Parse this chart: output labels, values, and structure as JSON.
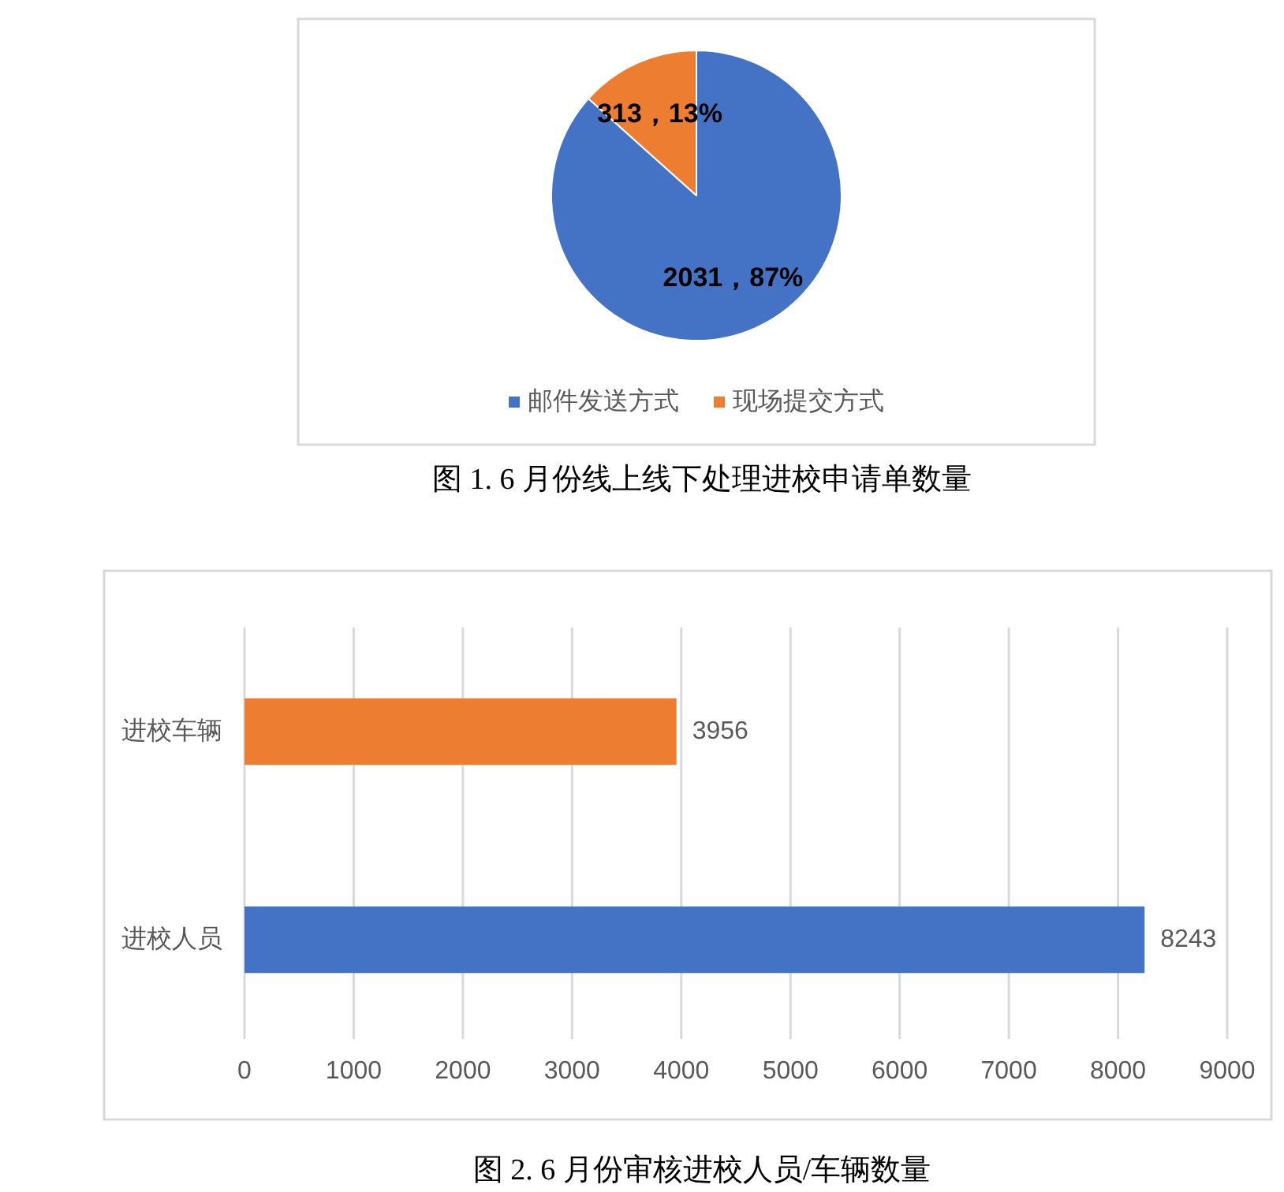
{
  "chart_data": [
    {
      "type": "pie",
      "title": "图 1. 6 月份线上线下处理进校申请单数量",
      "categories": [
        "邮件发送方式",
        "现场提交方式"
      ],
      "values": [
        2031,
        313
      ],
      "colors": [
        "#4472c4",
        "#ed7d31"
      ],
      "value_labels": [
        "2031，87%",
        "313，13%"
      ],
      "legend": "bottom"
    },
    {
      "type": "bar",
      "orientation": "horizontal",
      "title": "图 2. 6 月份审核进校人员/车辆数量",
      "categories": [
        "进校车辆",
        "进校人员"
      ],
      "values": [
        3956,
        8243
      ],
      "colors": [
        "#ed7d31",
        "#4472c4"
      ],
      "xlim": [
        0,
        9000
      ],
      "xticks": [
        0,
        1000,
        2000,
        3000,
        4000,
        5000,
        6000,
        7000,
        8000,
        9000
      ],
      "grid": "x",
      "data_labels": true
    }
  ]
}
